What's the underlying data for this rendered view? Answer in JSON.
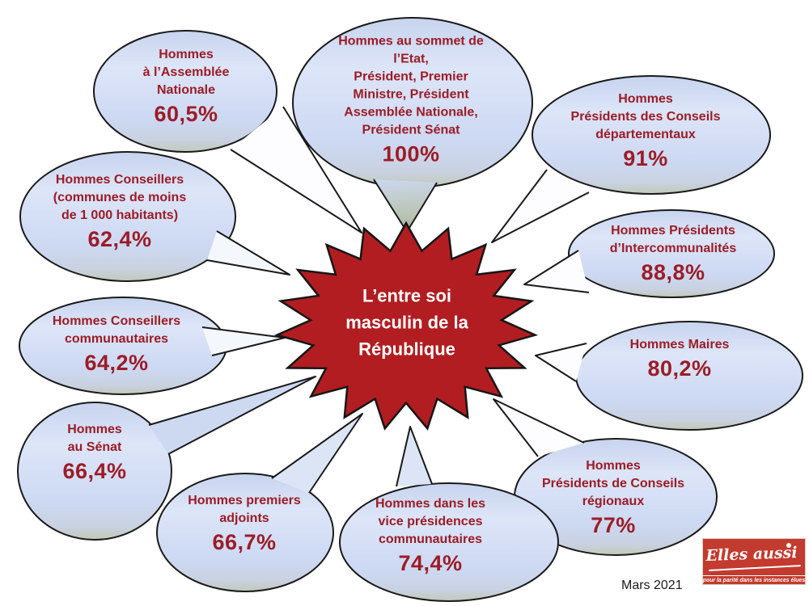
{
  "title": "L’entre soi\nmasculin de la\nRépublique",
  "date": "Mars 2021",
  "logo": {
    "name": "Elles aussi",
    "tagline": "pour la parité dans les instances élues",
    "background_color": "#c33a2e"
  },
  "colors": {
    "star_fill": "#b11d21",
    "bubble_fill": "#ccd9f2",
    "text_red": "#9c1c26",
    "outline": "#1a1a1a"
  },
  "bubbles": [
    {
      "label": "Hommes\nà l’Assemblée\nNationale",
      "value": "60,5%"
    },
    {
      "label": "Hommes au sommet de\nl’Etat,\nPrésident, Premier\nMinistre, Président\nAssemblée Nationale,\nPrésident Sénat",
      "value": "100%"
    },
    {
      "label": "Hommes\nPrésidents des Conseils\ndépartementaux",
      "value": "91%"
    },
    {
      "label": "Hommes Présidents\nd’Intercommunalités",
      "value": "88,8%"
    },
    {
      "label": "Hommes Maires",
      "value": "80,2%"
    },
    {
      "label": "Hommes\nPrésidents de Conseils\nrégionaux",
      "value": "77%"
    },
    {
      "label": "Hommes dans les\nvice présidences\ncommunautaires",
      "value": "74,4%"
    },
    {
      "label": "Hommes premiers\nadjoints",
      "value": "66,7%"
    },
    {
      "label": "Hommes\nau Sénat",
      "value": "66,4%"
    },
    {
      "label": "Hommes Conseillers\ncommunautaires",
      "value": "64,2%"
    },
    {
      "label": "Hommes Conseillers\n(communes de moins\nde 1 000 habitants)",
      "value": "62,4%"
    }
  ]
}
